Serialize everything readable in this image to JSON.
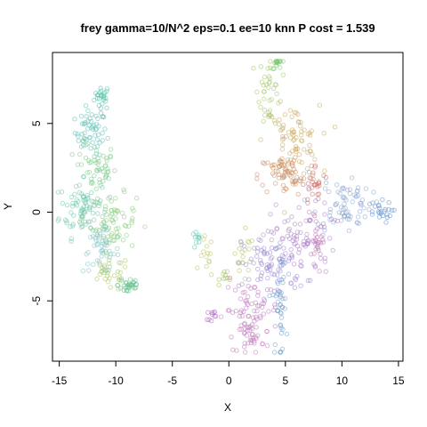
{
  "chart_data": {
    "type": "scatter",
    "title": "frey gamma=10/N^2 eps=0.1 ee=10 knn P cost = 1.539",
    "xlabel": "X",
    "ylabel": "Y",
    "xlim": [
      -15.6,
      15.4
    ],
    "ylim": [
      -8.4,
      9.0
    ],
    "xticks": [
      "-15",
      "-10",
      "-5",
      "0",
      "5",
      "10",
      "15"
    ],
    "xtick_values": [
      -15,
      -10,
      -5,
      0,
      5,
      10,
      15
    ],
    "yticks": [
      "-5",
      "0",
      "5"
    ],
    "ytick_values": [
      -5,
      0,
      5
    ],
    "grid": false,
    "legend": "none",
    "point_alpha": 0.55,
    "clusters": [
      {
        "color": "#4fbfa6",
        "cx": -11.2,
        "cy": 6.5,
        "sx": 0.35,
        "sy": 0.35,
        "n": 25
      },
      {
        "color": "#5cc0b5",
        "cx": -12.2,
        "cy": 4.5,
        "sx": 0.7,
        "sy": 0.6,
        "n": 55
      },
      {
        "color": "#7cc98a",
        "cx": -11.8,
        "cy": 2.5,
        "sx": 0.9,
        "sy": 0.7,
        "n": 55
      },
      {
        "color": "#6ac6a8",
        "cx": -12.8,
        "cy": 0.2,
        "sx": 1.1,
        "sy": 0.8,
        "n": 85
      },
      {
        "color": "#8ccc7e",
        "cx": -10.2,
        "cy": -0.6,
        "sx": 1.0,
        "sy": 0.8,
        "n": 70
      },
      {
        "color": "#7fc3c9",
        "cx": -11.3,
        "cy": -2.2,
        "sx": 0.8,
        "sy": 0.6,
        "n": 45
      },
      {
        "color": "#5ec08a",
        "cx": -8.8,
        "cy": -4.1,
        "sx": 0.5,
        "sy": 0.3,
        "n": 30
      },
      {
        "color": "#a9c766",
        "cx": -10.6,
        "cy": -3.5,
        "sx": 0.9,
        "sy": 0.5,
        "n": 30
      },
      {
        "color": "#59c4b0",
        "cx": -2.8,
        "cy": -1.6,
        "sx": 0.25,
        "sy": 0.25,
        "n": 10
      },
      {
        "color": "#b8c45e",
        "cx": -2.0,
        "cy": -2.6,
        "sx": 0.3,
        "sy": 0.6,
        "n": 14
      },
      {
        "color": "#b2c260",
        "cx": 1.3,
        "cy": -2.6,
        "sx": 0.5,
        "sy": 0.7,
        "n": 20
      },
      {
        "color": "#a8c35e",
        "cx": -0.2,
        "cy": -3.6,
        "sx": 0.3,
        "sy": 0.2,
        "n": 10
      },
      {
        "color": "#9fc764",
        "cx": 3.6,
        "cy": 7.0,
        "sx": 0.5,
        "sy": 1.1,
        "n": 40
      },
      {
        "color": "#78c56f",
        "cx": 4.4,
        "cy": 8.5,
        "sx": 0.3,
        "sy": 0.2,
        "n": 15
      },
      {
        "color": "#c9a860",
        "cx": 5.6,
        "cy": 4.0,
        "sx": 1.2,
        "sy": 1.0,
        "n": 80
      },
      {
        "color": "#c98d62",
        "cx": 5.2,
        "cy": 2.1,
        "sx": 1.3,
        "sy": 0.6,
        "n": 70
      },
      {
        "color": "#c96e6a",
        "cx": 7.7,
        "cy": 1.5,
        "sx": 0.6,
        "sy": 0.6,
        "n": 25
      },
      {
        "color": "#8da6d0",
        "cx": 10.2,
        "cy": 0.5,
        "sx": 1.2,
        "sy": 0.8,
        "n": 75
      },
      {
        "color": "#5e8fcc",
        "cx": 13.2,
        "cy": 0.0,
        "sx": 0.6,
        "sy": 0.3,
        "n": 25
      },
      {
        "color": "#b07fc7",
        "cx": 6.5,
        "cy": -1.5,
        "sx": 1.4,
        "sy": 1.0,
        "n": 85
      },
      {
        "color": "#9a88cf",
        "cx": 4.0,
        "cy": -3.0,
        "sx": 1.4,
        "sy": 0.9,
        "n": 85
      },
      {
        "color": "#6f9fcc",
        "cx": 4.5,
        "cy": -5.3,
        "sx": 0.3,
        "sy": 1.5,
        "n": 45
      },
      {
        "color": "#c078bd",
        "cx": 2.0,
        "cy": -5.5,
        "sx": 1.2,
        "sy": 0.8,
        "n": 65
      },
      {
        "color": "#c27bc0",
        "cx": 2.1,
        "cy": -7.1,
        "sx": 0.5,
        "sy": 0.4,
        "n": 30
      },
      {
        "color": "#b060c4",
        "cx": -1.5,
        "cy": -5.8,
        "sx": 0.2,
        "sy": 0.15,
        "n": 10
      },
      {
        "color": "#c56fa6",
        "cx": 7.8,
        "cy": -1.7,
        "sx": 0.3,
        "sy": 0.3,
        "n": 12
      }
    ]
  }
}
